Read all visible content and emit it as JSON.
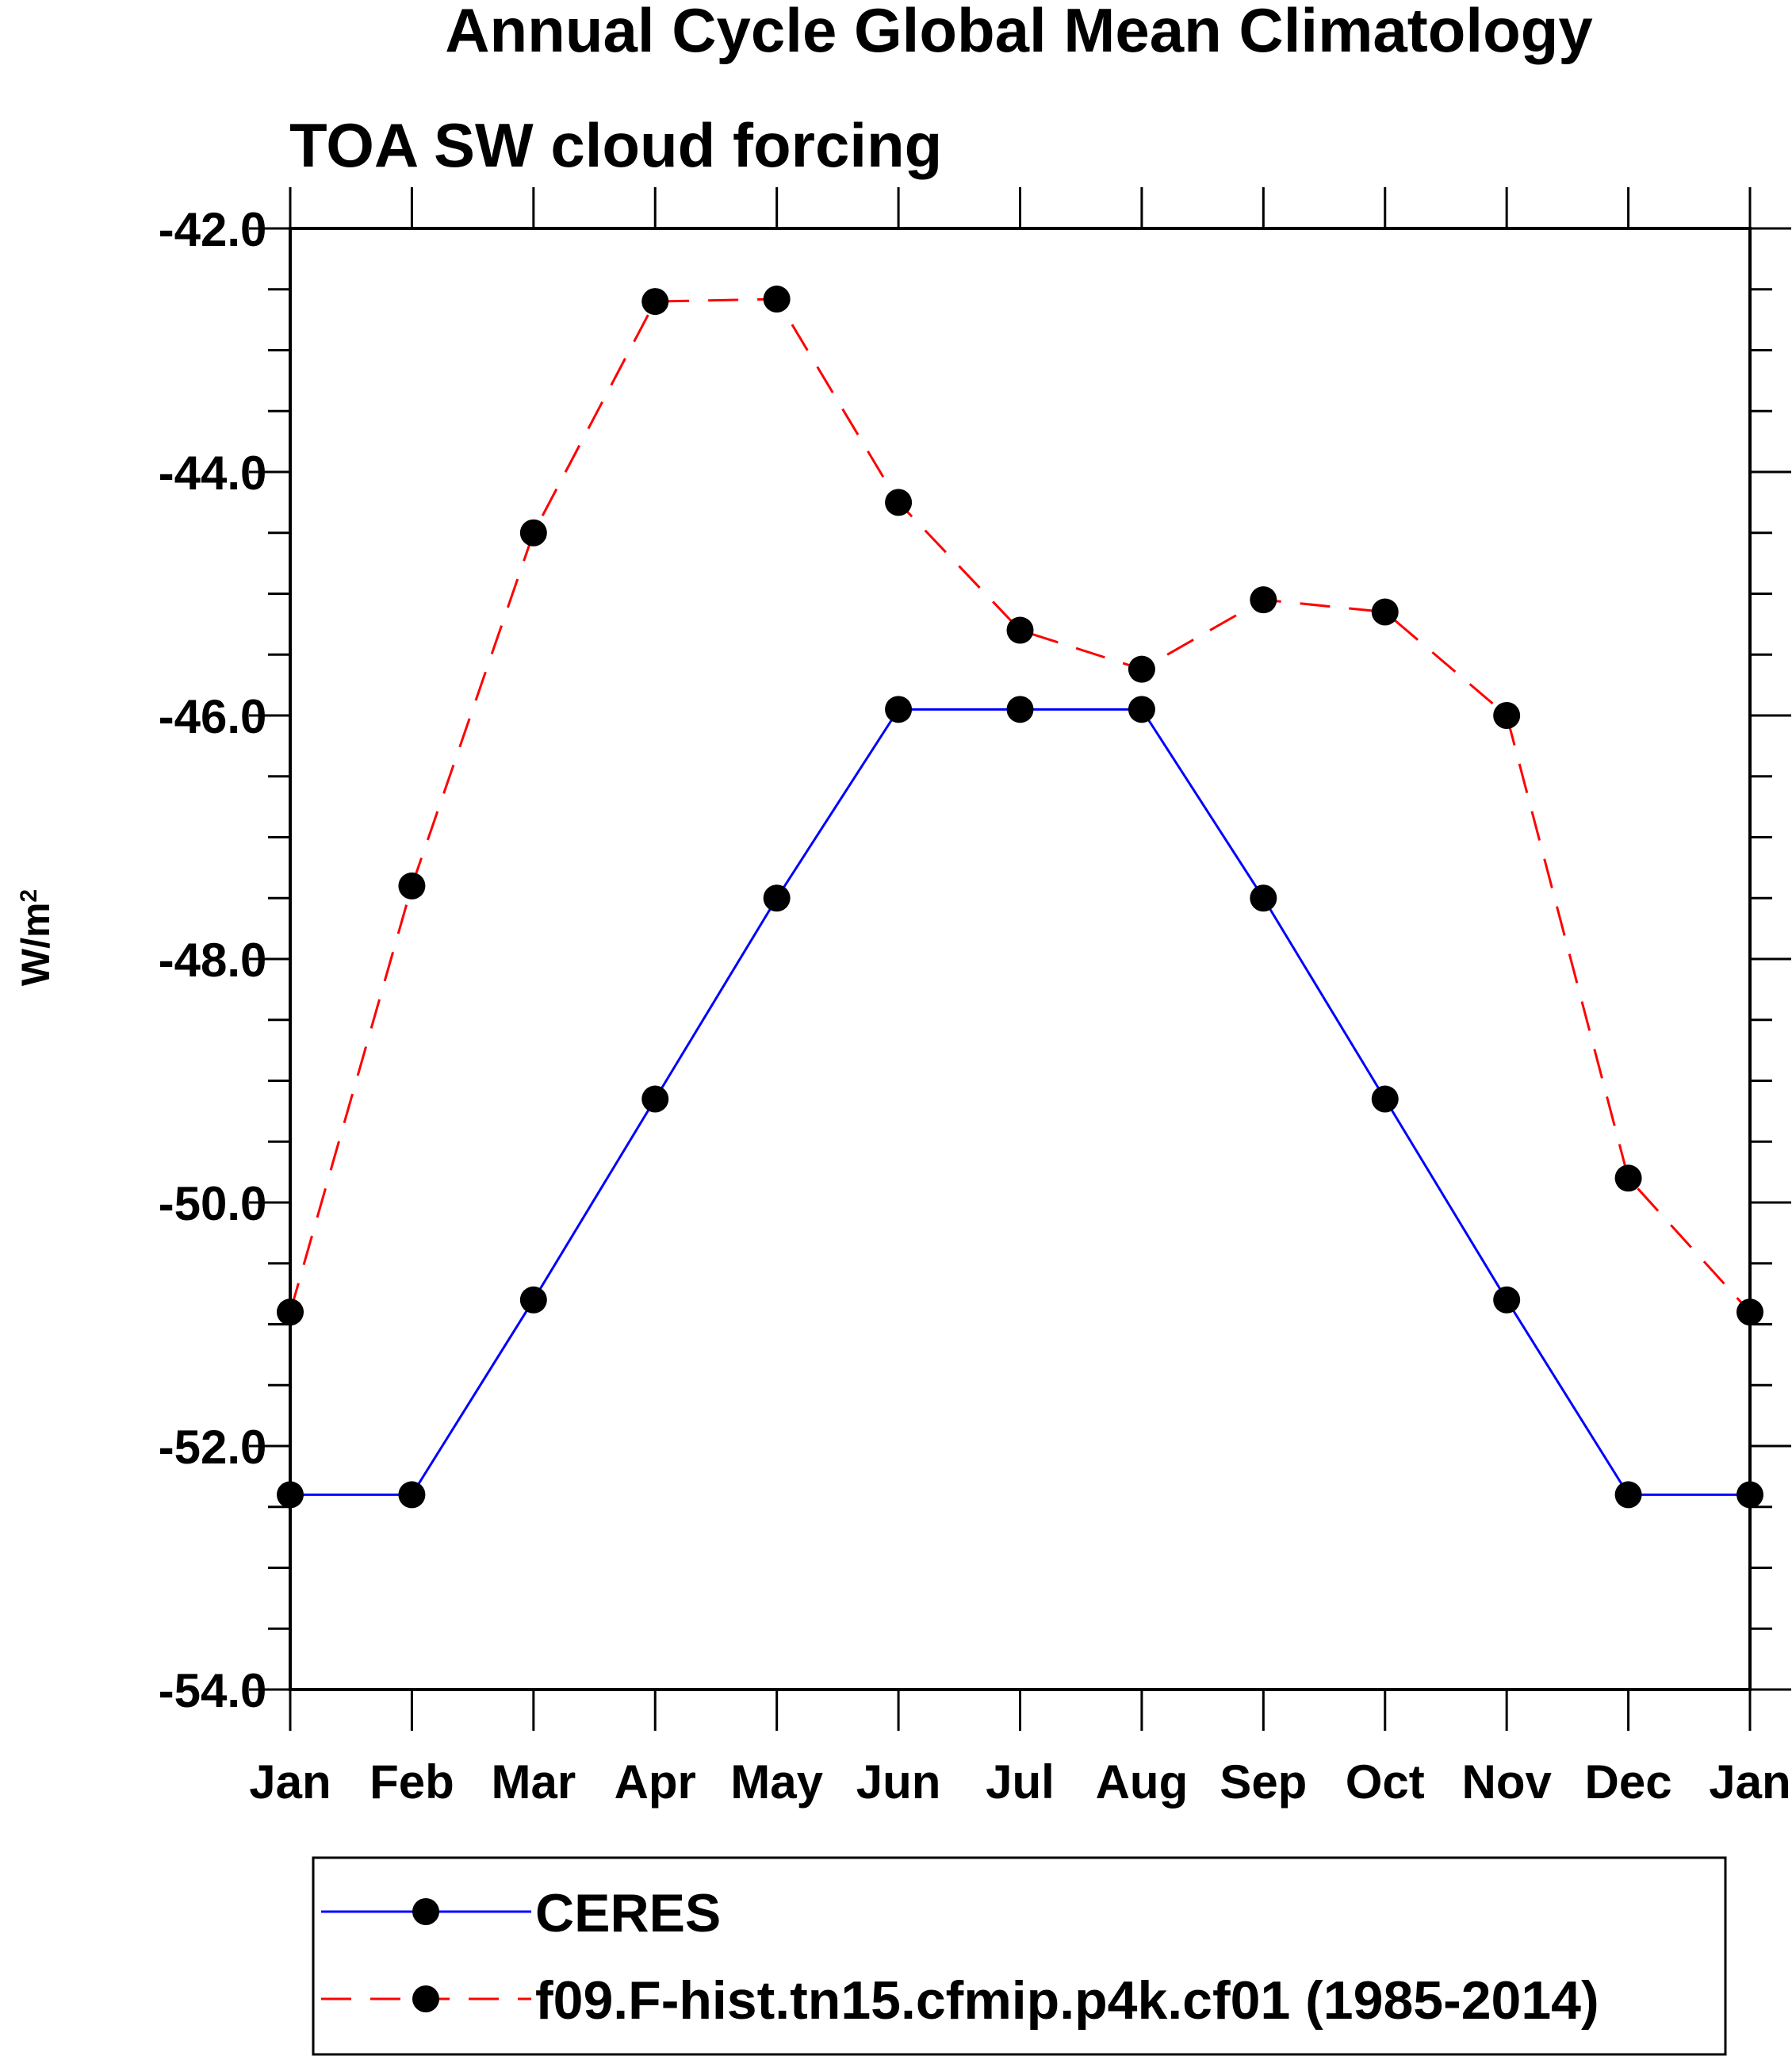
{
  "chart_data": {
    "type": "line",
    "title": "Annual Cycle Global Mean Climatology",
    "subtitle": "TOA SW cloud forcing",
    "ylabel_base": "W/m",
    "ylabel_sup": "2",
    "xlabel": "",
    "categories": [
      "Jan",
      "Feb",
      "Mar",
      "Apr",
      "May",
      "Jun",
      "Jul",
      "Aug",
      "Sep",
      "Oct",
      "Nov",
      "Dec",
      "Jan"
    ],
    "ylim": [
      -54.0,
      -42.0
    ],
    "yticks": [
      -54.0,
      -52.0,
      -50.0,
      -48.0,
      -46.0,
      -44.0,
      -42.0
    ],
    "ytick_labels": [
      "-54.0",
      "-52.0",
      "-50.0",
      "-48.0",
      "-46.0",
      "-44.0",
      "-42.0"
    ],
    "y_minor_step": 0.5,
    "grid": false,
    "legend_position": "bottom",
    "series": [
      {
        "name": "CERES",
        "color": "#0000ff",
        "dash": "solid",
        "marker": "circle",
        "values": [
          -52.4,
          -52.4,
          -50.8,
          -49.15,
          -47.5,
          -45.95,
          -45.95,
          -45.95,
          -47.5,
          -49.15,
          -50.8,
          -52.4,
          -52.4
        ]
      },
      {
        "name": "f09.F-hist.tn15.cfmip.p4k.cf01 (1985-2014)",
        "color": "#ff0000",
        "dash": "dashed",
        "marker": "circle",
        "values": [
          -50.9,
          -47.4,
          -44.5,
          -42.6,
          -42.58,
          -44.25,
          -45.3,
          -45.62,
          -45.05,
          -45.15,
          -46.0,
          -49.8,
          -50.9
        ]
      }
    ]
  }
}
